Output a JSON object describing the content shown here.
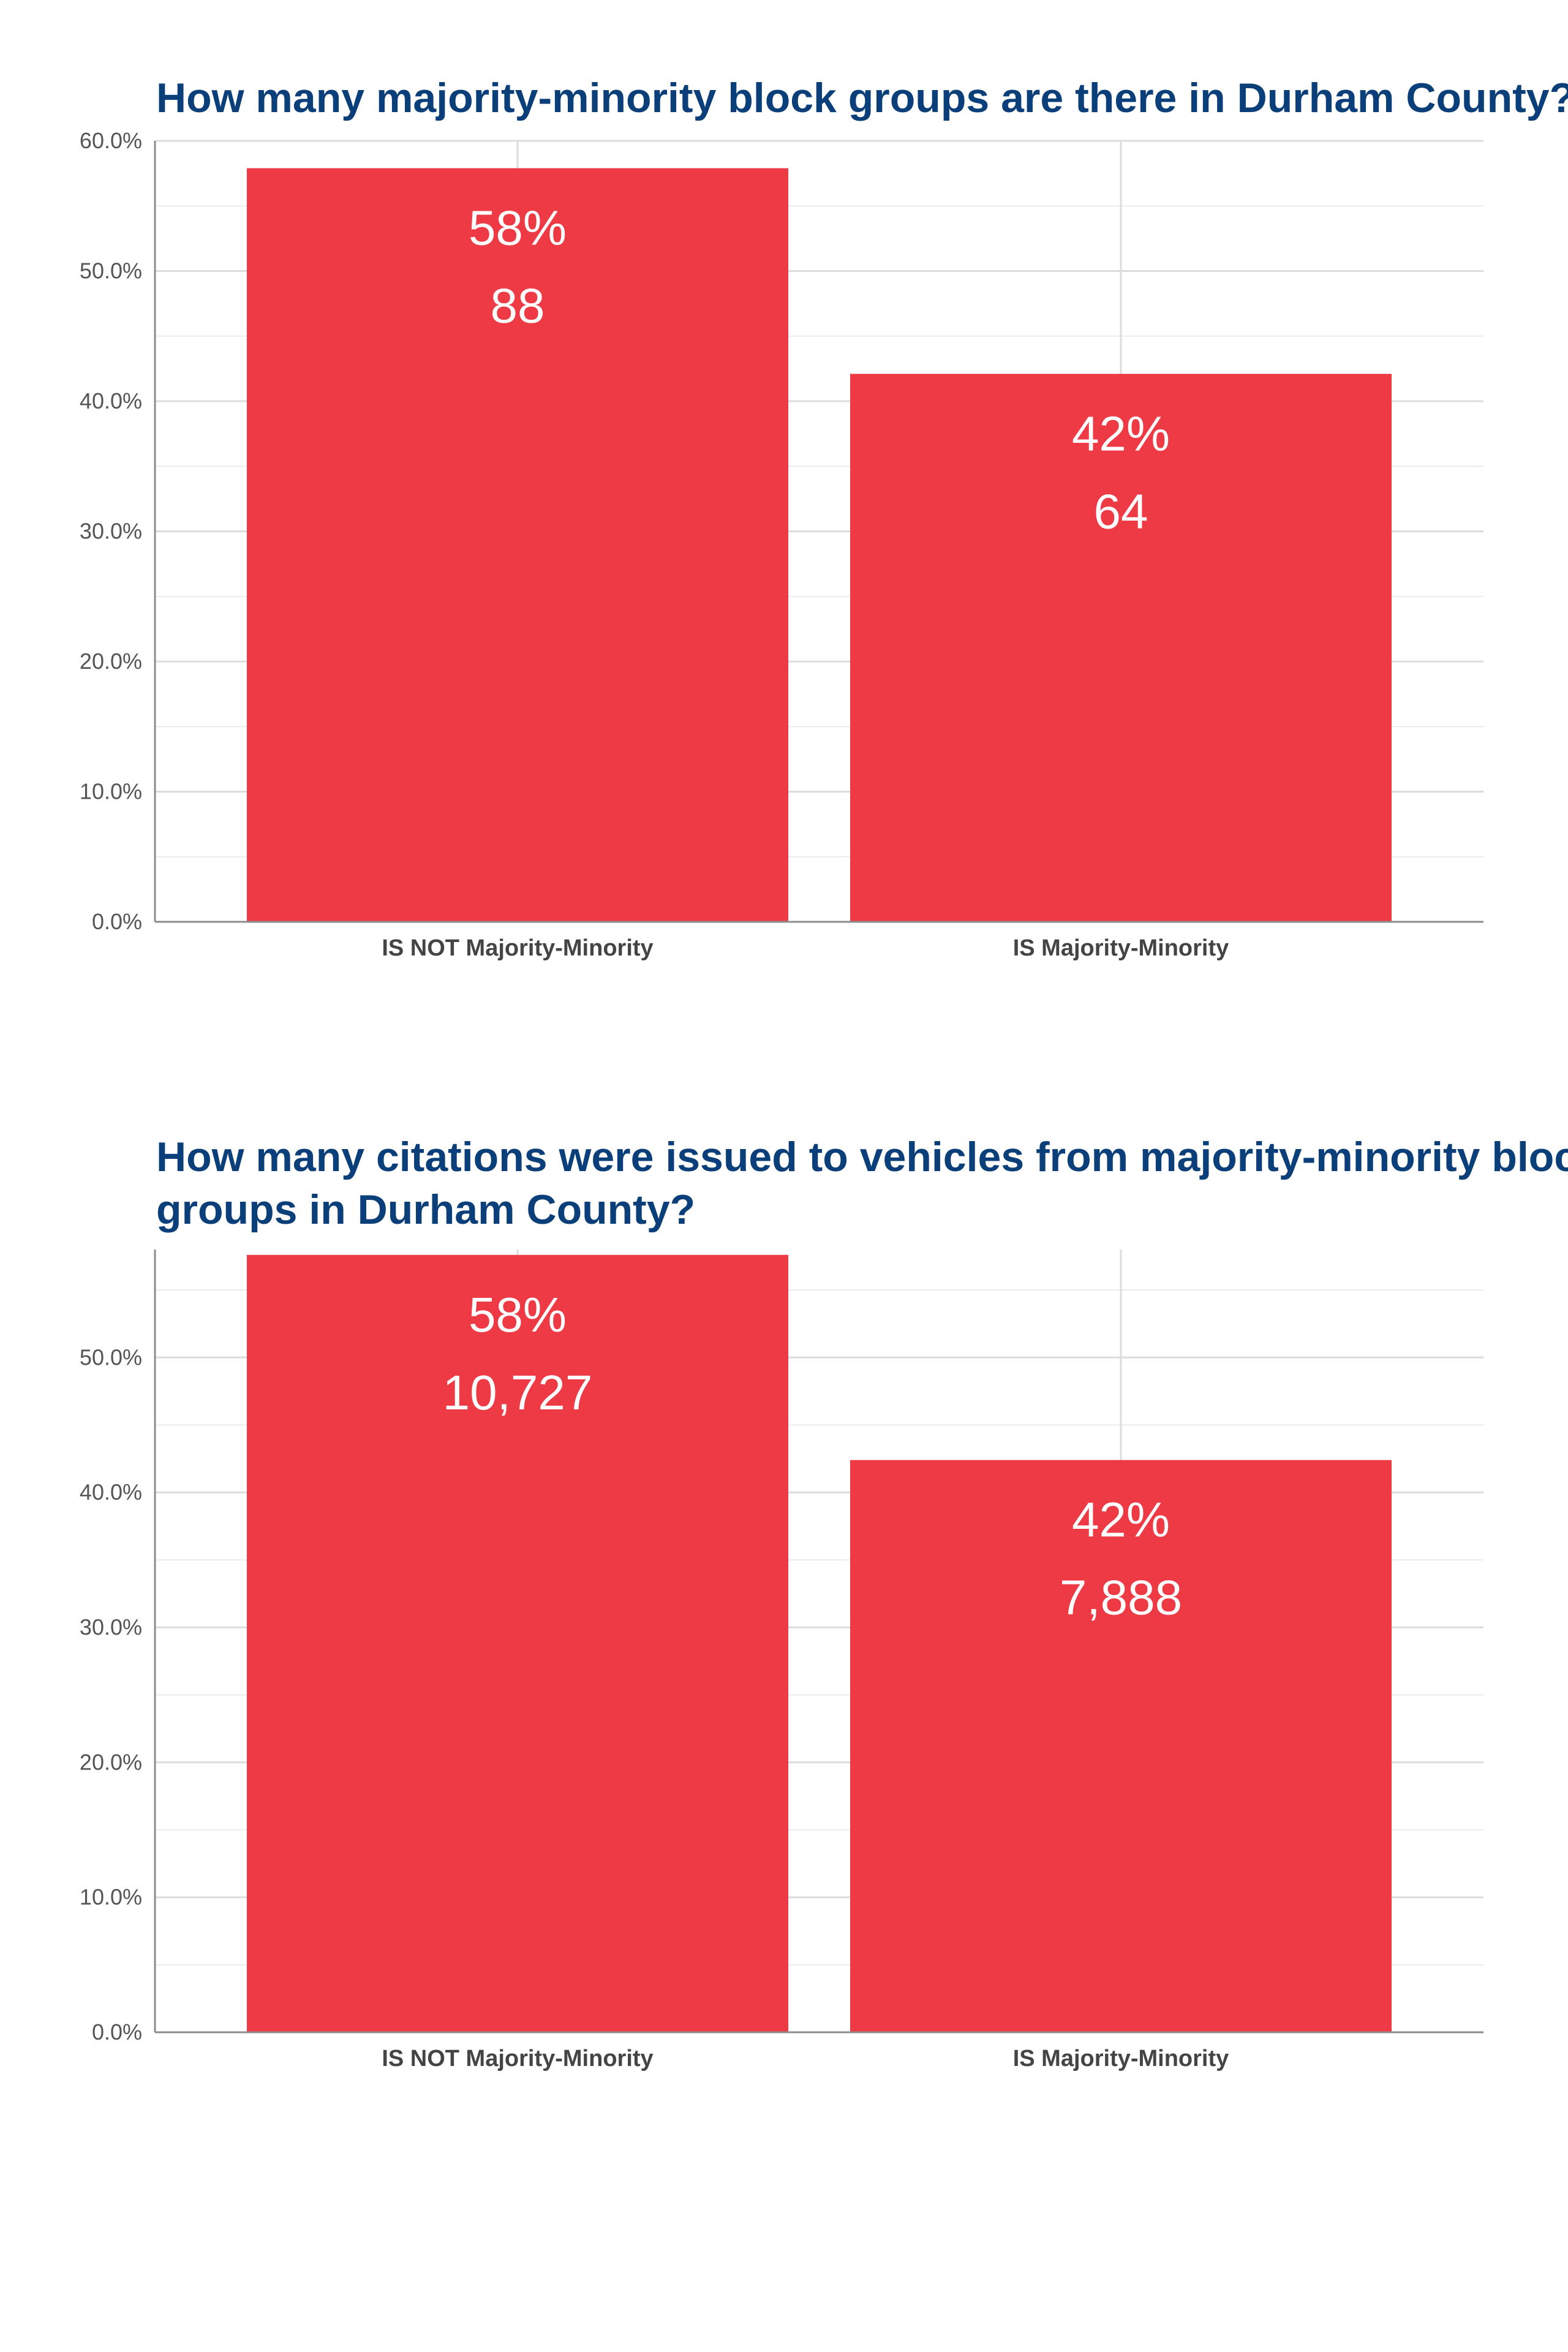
{
  "chart_data": [
    {
      "type": "bar",
      "title": "How many majority-minority block groups are there in Durham County?",
      "categories": [
        "IS NOT Majority-Minority",
        "IS Majority-Minority"
      ],
      "values": [
        57.9,
        42.1
      ],
      "bar_labels": [
        {
          "percent": "58%",
          "count": "88"
        },
        {
          "percent": "42%",
          "count": "64"
        }
      ],
      "yticks": [
        "0.0%",
        "10.0%",
        "20.0%",
        "30.0%",
        "40.0%",
        "50.0%",
        "60.0%"
      ],
      "ylim": [
        0,
        60
      ],
      "grid": true,
      "bar_color": "#ee3a45"
    },
    {
      "type": "bar",
      "title": "How many citations were issued to vehicles from majority-minority block groups in Durham County?",
      "categories": [
        "IS NOT Majority-Minority",
        "IS Majority-Minority"
      ],
      "values": [
        57.6,
        42.4
      ],
      "bar_labels": [
        {
          "percent": "58%",
          "count": "10,727"
        },
        {
          "percent": "42%",
          "count": "7,888"
        }
      ],
      "yticks": [
        "0.0%",
        "10.0%",
        "20.0%",
        "30.0%",
        "40.0%",
        "50.0%"
      ],
      "ylim": [
        0,
        58
      ],
      "grid": true,
      "bar_color": "#ee3a45"
    }
  ]
}
